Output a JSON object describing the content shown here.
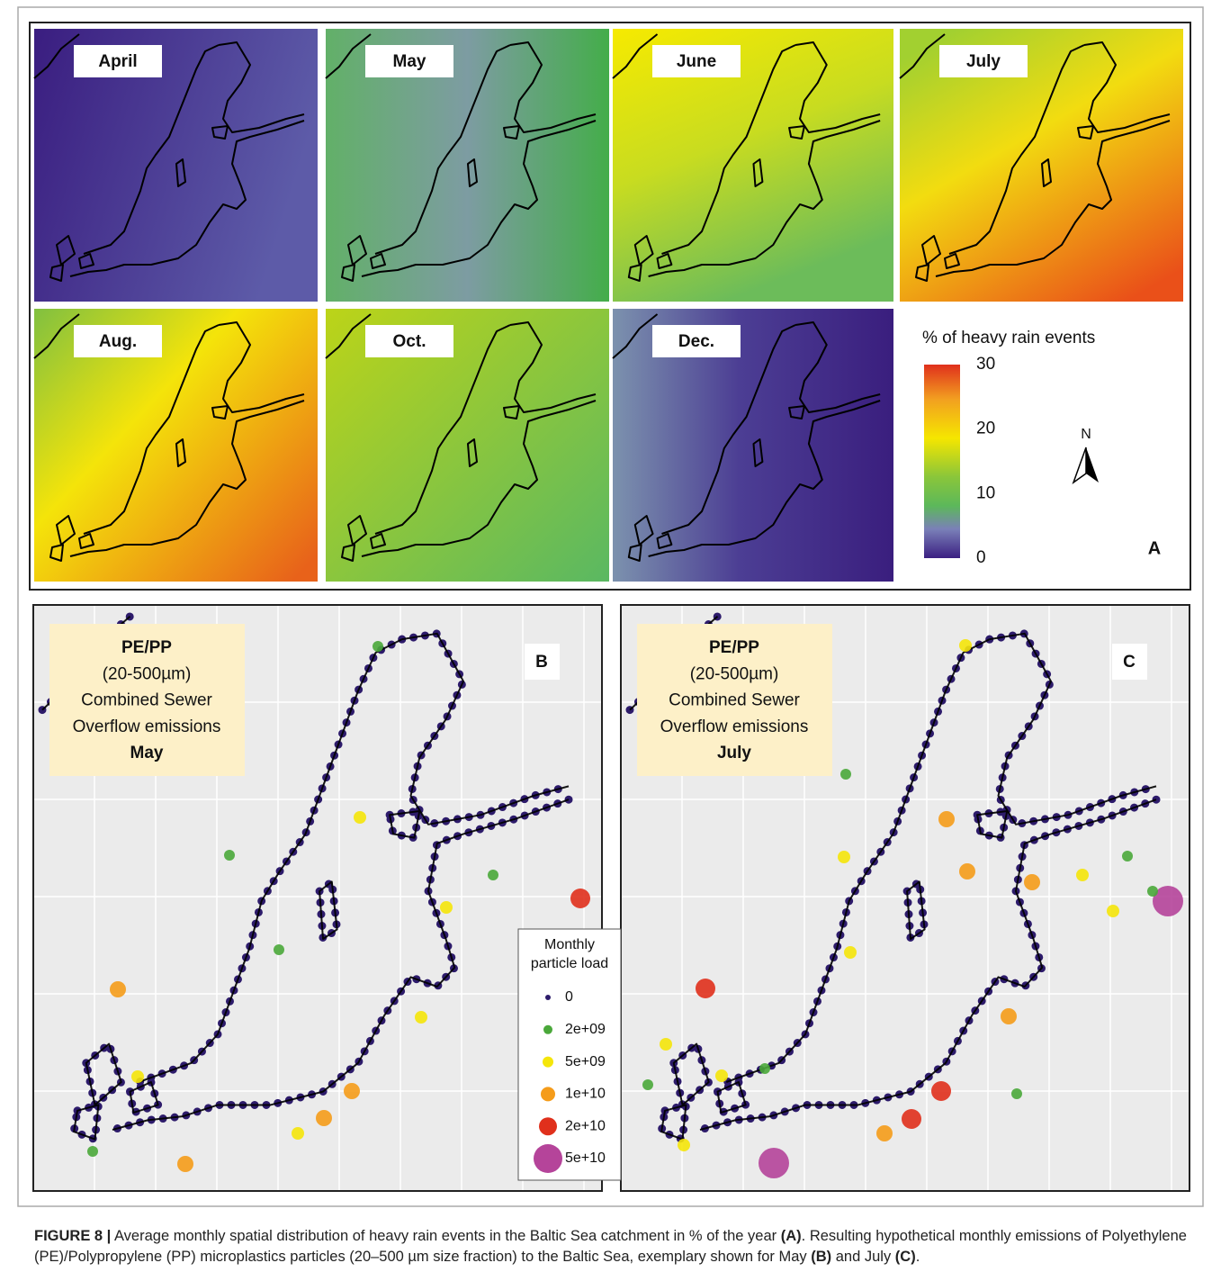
{
  "panel_a": {
    "months": [
      "April",
      "May",
      "June",
      "July",
      "Aug.",
      "Oct.",
      "Dec."
    ],
    "legend_title": "% of heavy rain events",
    "colorbar_ticks": [
      0,
      10,
      20,
      30
    ],
    "north": "N",
    "label": "A"
  },
  "panel_b": {
    "box_lines": [
      "PE/PP",
      "(20-500µm)",
      "Combined Sewer",
      "Overflow emissions",
      "May"
    ],
    "label": "B"
  },
  "panel_c": {
    "box_lines": [
      "PE/PP",
      "(20-500µm)",
      "Combined Sewer",
      "Overflow emissions",
      "July"
    ],
    "label": "C"
  },
  "particle_legend": {
    "title_lines": [
      "Monthly",
      "particle load"
    ],
    "entries": [
      {
        "label": "0",
        "color": "#2d1b6b"
      },
      {
        "label": "2e+09",
        "color": "#4aa83a"
      },
      {
        "label": "5e+09",
        "color": "#f5e60a"
      },
      {
        "label": "1e+10",
        "color": "#f59c1a"
      },
      {
        "label": "2e+10",
        "color": "#e0301c"
      },
      {
        "label": "5e+10",
        "color": "#b5449a"
      }
    ]
  },
  "caption": {
    "parts": [
      {
        "text": "FIGURE 8 |",
        "bold": true
      },
      {
        "text": " Average monthly spatial distribution of heavy rain events in the Baltic Sea catchment in % of the year ",
        "bold": false
      },
      {
        "text": "(A)",
        "bold": true
      },
      {
        "text": ". Resulting hypothetical monthly emissions of Polyethylene (PE)/Polypropylene (PP) microplastics particles (20–500 µm size fraction) to the Baltic Sea, exemplary shown for May ",
        "bold": false
      },
      {
        "text": "(B)",
        "bold": true
      },
      {
        "text": " and July ",
        "bold": false
      },
      {
        "text": "(C)",
        "bold": true
      },
      {
        "text": ".",
        "bold": false
      }
    ]
  }
}
